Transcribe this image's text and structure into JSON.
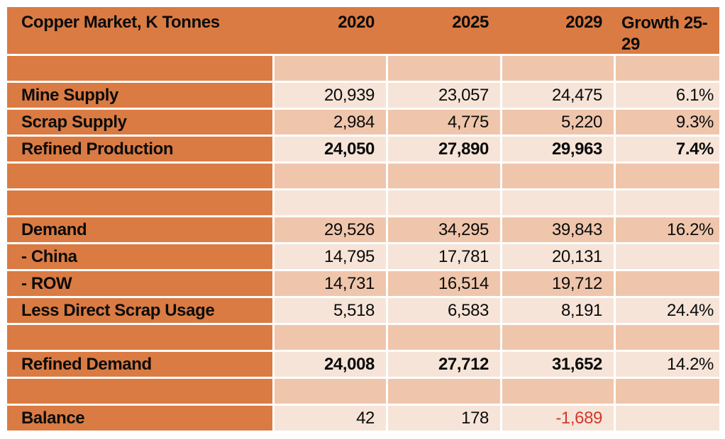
{
  "page": {
    "background": "#ffffff"
  },
  "table": {
    "title": "Copper Market, K Tonnes",
    "columns": [
      "2020",
      "2025",
      "2029",
      "Growth 25-29"
    ],
    "colors": {
      "orange": "#DA7B43",
      "band_dark": "#EFC6AC",
      "band_light": "#F6E4D8",
      "negative": "#D2392A",
      "text": "#0b0b0b"
    },
    "rows": [
      {
        "label": "",
        "values": [
          "",
          "",
          "",
          ""
        ],
        "band": "dark"
      },
      {
        "label": "Mine Supply",
        "values": [
          "20,939",
          "23,057",
          "24,475",
          "6.1%"
        ],
        "band": "light"
      },
      {
        "label": "Scrap Supply",
        "values": [
          "2,984",
          "4,775",
          "5,220",
          "9.3%"
        ],
        "band": "dark"
      },
      {
        "label": "Refined Production",
        "values": [
          "24,050",
          "27,890",
          "29,963",
          "7.4%"
        ],
        "band": "light",
        "bold_values": true,
        "bold_growth": true
      },
      {
        "label": "",
        "values": [
          "",
          "",
          "",
          ""
        ],
        "band": "dark"
      },
      {
        "label": "",
        "values": [
          "",
          "",
          "",
          ""
        ],
        "band": "light"
      },
      {
        "label": "Demand",
        "values": [
          "29,526",
          "34,295",
          "39,843",
          "16.2%"
        ],
        "band": "dark"
      },
      {
        "label": "- China",
        "values": [
          "14,795",
          "17,781",
          "20,131",
          ""
        ],
        "band": "light"
      },
      {
        "label": "- ROW",
        "values": [
          "14,731",
          "16,514",
          "19,712",
          ""
        ],
        "band": "dark"
      },
      {
        "label": "Less Direct Scrap Usage",
        "values": [
          "5,518",
          "6,583",
          "8,191",
          "24.4%"
        ],
        "band": "light"
      },
      {
        "label": "",
        "values": [
          "",
          "",
          "",
          ""
        ],
        "band": "dark"
      },
      {
        "label": "Refined Demand",
        "values": [
          "24,008",
          "27,712",
          "31,652",
          "14.2%"
        ],
        "band": "light",
        "bold_values": true,
        "bold_growth": false
      },
      {
        "label": "",
        "values": [
          "",
          "",
          "",
          ""
        ],
        "band": "dark"
      },
      {
        "label": "Balance",
        "values": [
          "42",
          "178",
          "-1,689",
          ""
        ],
        "band": "light"
      }
    ]
  }
}
